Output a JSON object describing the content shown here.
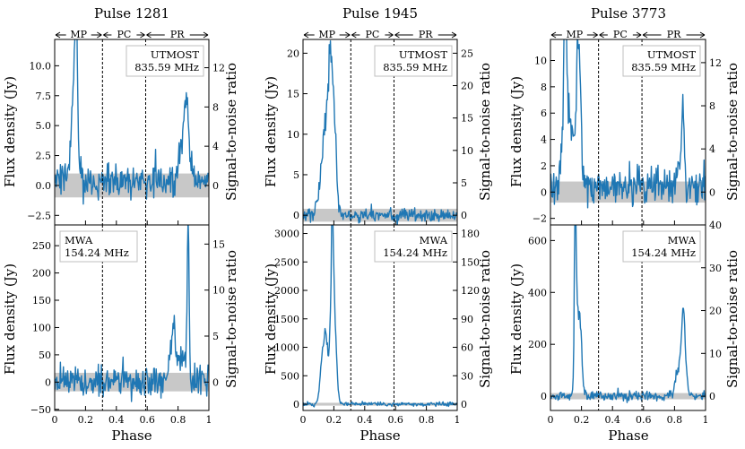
{
  "figure": {
    "xlabel": "Phase",
    "ylabel_left": "Flux density (Jy)",
    "ylabel_right": "Signal-to-noise ratio",
    "regions": [
      "MP",
      "PC",
      "PR"
    ],
    "region_bounds": [
      0.0,
      0.31,
      0.59,
      1.0
    ],
    "colors": {
      "line": "#1f77b4",
      "noise_band": "#c8c8c8",
      "text": "#000000"
    }
  },
  "chart_data": [
    {
      "type": "line",
      "title": "Pulse 1281",
      "panel": "top",
      "column": 0,
      "instrument": "UTMOST",
      "frequency": "835.59 MHz",
      "legend_pos": "top-right",
      "xlim": [
        0,
        1
      ],
      "ylim": [
        -3.3,
        12.2
      ],
      "yticks": [
        -2.5,
        0.0,
        2.5,
        5.0,
        7.5,
        10.0
      ],
      "ytick_labels": [
        "−2.5",
        "0.0",
        "2.5",
        "5.0",
        "7.5",
        "10.0"
      ],
      "snr_ticks": [
        0,
        4,
        8,
        12
      ],
      "snr_per_unit": 1.22,
      "xticks": [],
      "xtick_labels": [],
      "noise_band": [
        -1.0,
        1.0
      ],
      "components": [
        {
          "phase": 0.125,
          "height": 6.0,
          "width": 0.012
        },
        {
          "phase": 0.14,
          "height": 10.5,
          "width": 0.007
        },
        {
          "phase": 0.12,
          "height": 2.5,
          "width": 0.03
        },
        {
          "phase": 0.84,
          "height": 3.2,
          "width": 0.03
        },
        {
          "phase": 0.855,
          "height": 4.3,
          "width": 0.012
        }
      ],
      "noise_rms": 0.7,
      "offset": 0.4,
      "seed": 11
    },
    {
      "type": "line",
      "title": "Pulse 1281",
      "panel": "bottom",
      "column": 0,
      "instrument": "MWA",
      "frequency": "154.24 MHz",
      "legend_pos": "top-left",
      "xlim": [
        0,
        1
      ],
      "ylim": [
        -52,
        288
      ],
      "yticks": [
        -50,
        0,
        50,
        100,
        150,
        200,
        250
      ],
      "ytick_labels": [
        "−50",
        "0",
        "50",
        "100",
        "150",
        "200",
        "250"
      ],
      "snr_ticks": [
        0,
        5,
        10,
        15
      ],
      "snr_per_unit": 0.0593,
      "xticks": [
        0,
        0.2,
        0.4,
        0.6,
        0.8,
        1.0
      ],
      "xtick_labels": [
        "0",
        "0.2",
        "0.4",
        "0.6",
        "0.8",
        "1"
      ],
      "noise_band": [
        -17,
        17
      ],
      "components": [
        {
          "phase": 0.755,
          "height": 70,
          "width": 0.015
        },
        {
          "phase": 0.775,
          "height": 55,
          "width": 0.01
        },
        {
          "phase": 0.8,
          "height": 45,
          "width": 0.02
        },
        {
          "phase": 0.865,
          "height": 265,
          "width": 0.006
        },
        {
          "phase": 0.845,
          "height": 40,
          "width": 0.02
        }
      ],
      "noise_rms": 14,
      "offset": 2,
      "seed": 23
    },
    {
      "type": "line",
      "title": "Pulse 1945",
      "panel": "top",
      "column": 1,
      "instrument": "UTMOST",
      "frequency": "835.59 MHz",
      "legend_pos": "top-right",
      "xlim": [
        0,
        1
      ],
      "ylim": [
        -1.2,
        21.7
      ],
      "yticks": [
        0,
        5,
        10,
        15,
        20
      ],
      "ytick_labels": [
        "0",
        "5",
        "10",
        "15",
        "20"
      ],
      "snr_ticks": [
        0,
        5,
        10,
        15,
        20,
        25
      ],
      "snr_per_unit": 1.25,
      "xticks": [],
      "xtick_labels": [],
      "noise_band": [
        -0.8,
        0.8
      ],
      "components": [
        {
          "phase": 0.16,
          "height": 13.0,
          "width": 0.035
        },
        {
          "phase": 0.18,
          "height": 9.0,
          "width": 0.012
        },
        {
          "phase": 0.205,
          "height": 6.0,
          "width": 0.01
        }
      ],
      "noise_rms": 0.45,
      "offset": 0,
      "seed": 37
    },
    {
      "type": "line",
      "title": "Pulse 1945",
      "panel": "bottom",
      "column": 1,
      "instrument": "MWA",
      "frequency": "154.24 MHz",
      "legend_pos": "top-right",
      "xlim": [
        0,
        1
      ],
      "ylim": [
        -110,
        3150
      ],
      "yticks": [
        0,
        500,
        1000,
        1500,
        2000,
        2500,
        3000
      ],
      "ytick_labels": [
        "0",
        "500",
        "1000",
        "1500",
        "2000",
        "2500",
        "3000"
      ],
      "snr_ticks": [
        0,
        30,
        60,
        90,
        120,
        150,
        180
      ],
      "snr_per_unit": 0.06,
      "xticks": [
        0,
        0.2,
        0.4,
        0.6,
        0.8,
        1.0
      ],
      "xtick_labels": [
        "0",
        "0.2",
        "0.4",
        "0.6",
        "0.8",
        "1"
      ],
      "noise_band": [
        -25,
        25
      ],
      "components": [
        {
          "phase": 0.125,
          "height": 750,
          "width": 0.015
        },
        {
          "phase": 0.175,
          "height": 900,
          "width": 0.025
        },
        {
          "phase": 0.19,
          "height": 2000,
          "width": 0.008
        },
        {
          "phase": 0.205,
          "height": 1100,
          "width": 0.012
        },
        {
          "phase": 0.145,
          "height": 500,
          "width": 0.01
        }
      ],
      "noise_rms": 18,
      "offset": 0,
      "seed": 41
    },
    {
      "type": "line",
      "title": "Pulse 3773",
      "panel": "top",
      "column": 2,
      "instrument": "UTMOST",
      "frequency": "835.59 MHz",
      "legend_pos": "top-right",
      "xlim": [
        0,
        1
      ],
      "ylim": [
        -2.5,
        11.6
      ],
      "yticks": [
        -2,
        0,
        2,
        4,
        6,
        8,
        10
      ],
      "ytick_labels": [
        "−2",
        "0",
        "2",
        "4",
        "6",
        "8",
        "10"
      ],
      "snr_ticks": [
        0,
        4,
        8,
        12
      ],
      "snr_per_unit": 1.22,
      "xticks": [],
      "xtick_labels": [],
      "noise_band": [
        -0.8,
        0.8
      ],
      "components": [
        {
          "phase": 0.095,
          "height": 10.0,
          "width": 0.008
        },
        {
          "phase": 0.105,
          "height": 4.0,
          "width": 0.025
        },
        {
          "phase": 0.14,
          "height": 3.0,
          "width": 0.04
        },
        {
          "phase": 0.175,
          "height": 7.5,
          "width": 0.008
        },
        {
          "phase": 0.19,
          "height": 6.5,
          "width": 0.008
        },
        {
          "phase": 0.855,
          "height": 5.0,
          "width": 0.008
        },
        {
          "phase": 0.84,
          "height": 2.0,
          "width": 0.02
        }
      ],
      "noise_rms": 0.7,
      "offset": 0.4,
      "seed": 53
    },
    {
      "type": "line",
      "title": "Pulse 3773",
      "panel": "bottom",
      "column": 2,
      "instrument": "MWA",
      "frequency": "154.24 MHz",
      "legend_pos": "top-right",
      "xlim": [
        0,
        1
      ],
      "ylim": [
        -55,
        660
      ],
      "yticks": [
        0,
        200,
        400,
        600
      ],
      "ytick_labels": [
        "0",
        "200",
        "400",
        "600"
      ],
      "snr_ticks": [
        0,
        10,
        20,
        30,
        40
      ],
      "snr_per_unit": 0.0606,
      "xticks": [
        0,
        0.2,
        0.4,
        0.6,
        0.8,
        1.0
      ],
      "xtick_labels": [
        "0",
        "0.2",
        "0.4",
        "0.6",
        "0.8",
        "1"
      ],
      "noise_band": [
        -12,
        12
      ],
      "components": [
        {
          "phase": 0.16,
          "height": 600,
          "width": 0.006
        },
        {
          "phase": 0.17,
          "height": 200,
          "width": 0.012
        },
        {
          "phase": 0.19,
          "height": 280,
          "width": 0.012
        },
        {
          "phase": 0.83,
          "height": 120,
          "width": 0.02
        },
        {
          "phase": 0.855,
          "height": 260,
          "width": 0.01
        },
        {
          "phase": 0.87,
          "height": 90,
          "width": 0.012
        }
      ],
      "noise_rms": 9,
      "offset": 0,
      "seed": 67
    }
  ]
}
